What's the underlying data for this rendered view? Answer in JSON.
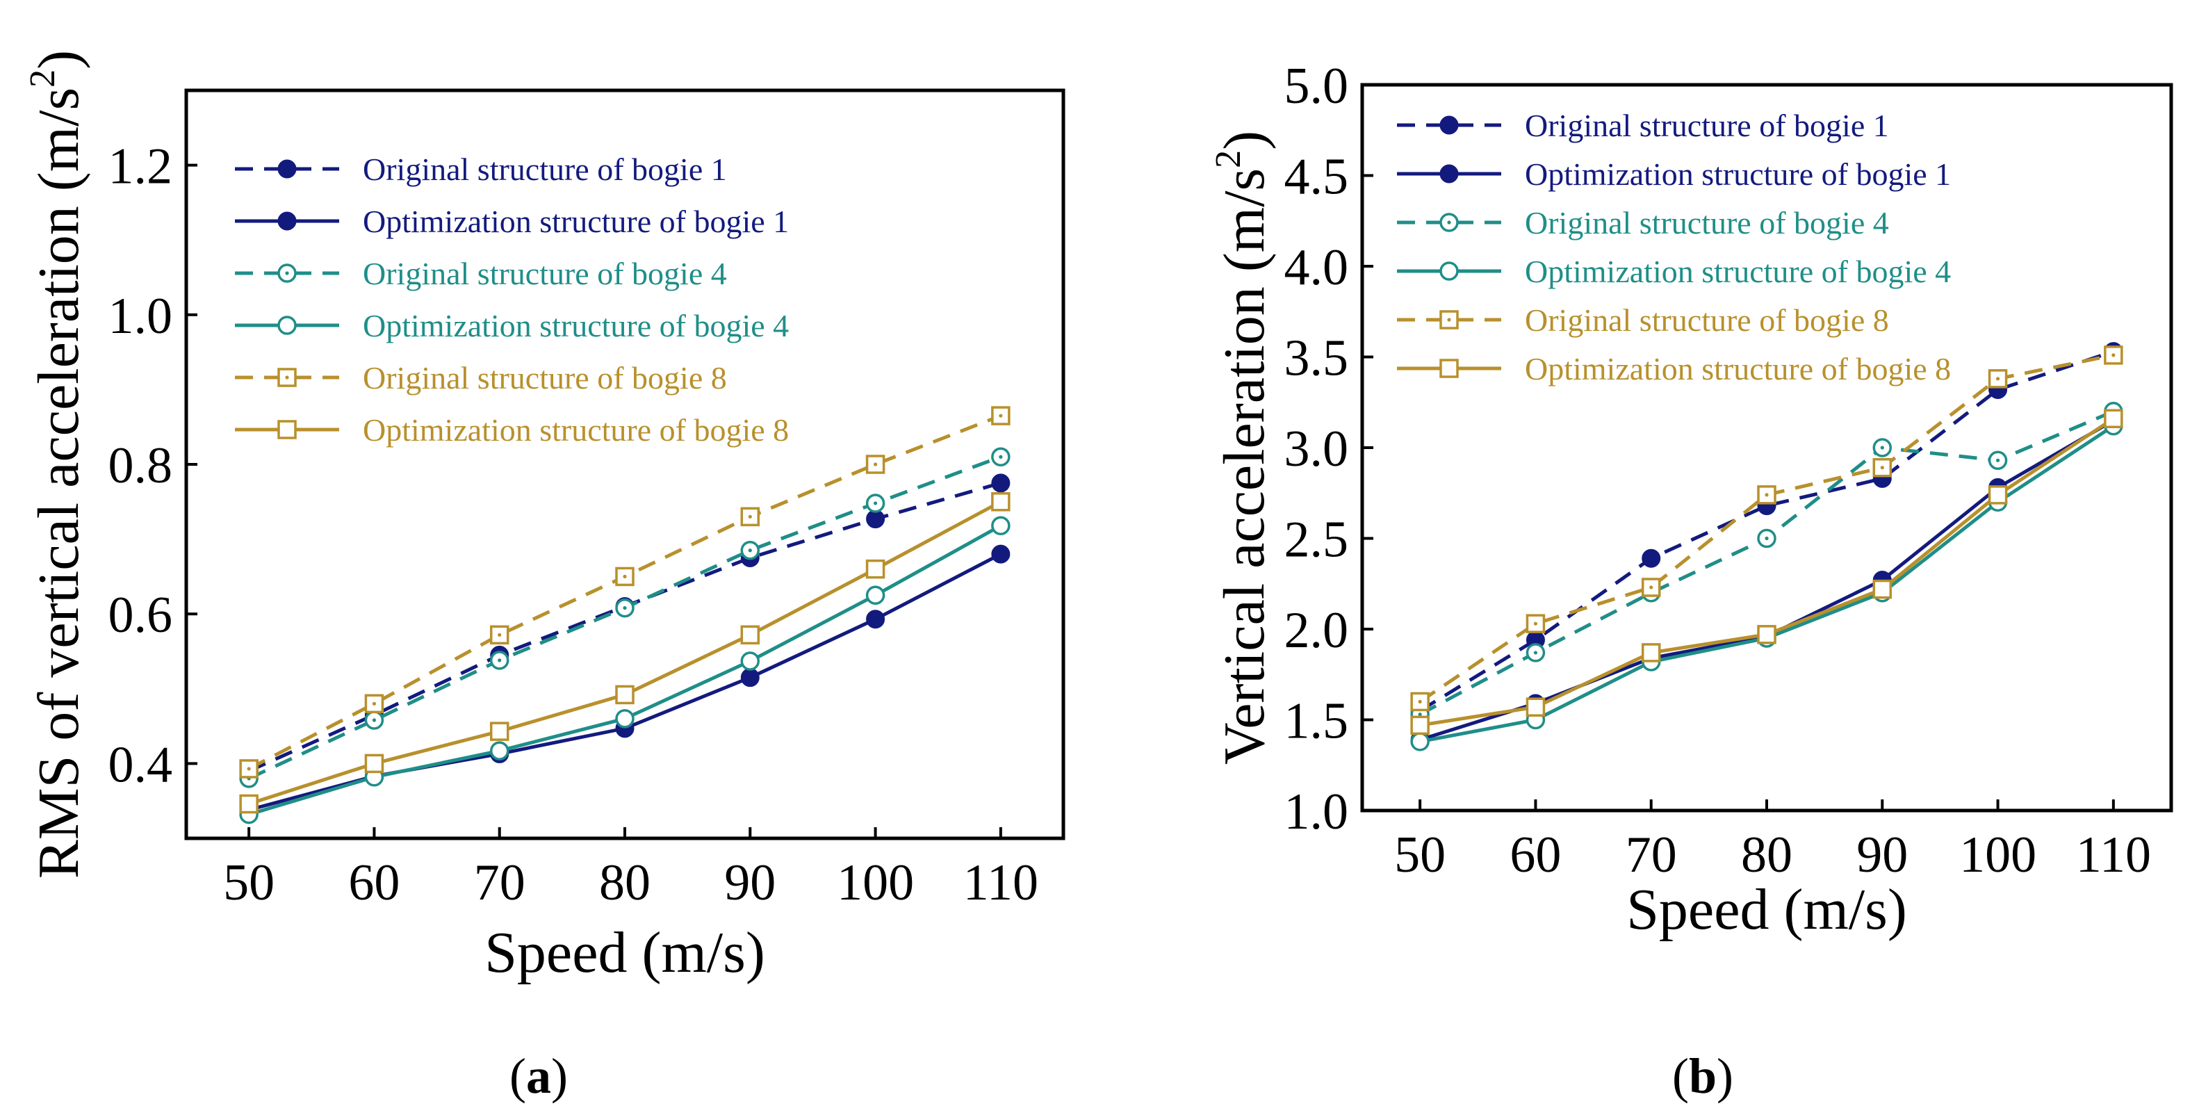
{
  "colors": {
    "bogie1": "#131a7e",
    "bogie4": "#1f8e88",
    "bogie8": "#b8902c",
    "axis": "#000000"
  },
  "chart_data": [
    {
      "id": "a",
      "type": "line",
      "caption": "a",
      "xlabel": "Speed (m/s)",
      "ylabel": "RMS of vertical acceleration (m/s",
      "ylabel_sup": "2",
      "ylabel_end": ")",
      "xlim": [
        45,
        115
      ],
      "ylim": [
        0.3,
        1.3
      ],
      "xticks": [
        50,
        60,
        70,
        80,
        90,
        100,
        110
      ],
      "yticks": [
        0.4,
        0.6,
        0.8,
        1.0,
        1.2
      ],
      "ytick_labels": [
        "0.4",
        "0.6",
        "0.8",
        "1.0",
        "1.2"
      ],
      "x": [
        50,
        60,
        70,
        80,
        90,
        100,
        110
      ],
      "series": [
        {
          "name": "Original structure of bogie 1",
          "color_key": "bogie1",
          "dash": true,
          "marker": "filled-circle",
          "values": [
            0.39,
            0.465,
            0.545,
            0.61,
            0.675,
            0.727,
            0.775
          ]
        },
        {
          "name": "Optimization structure of bogie 1",
          "color_key": "bogie1",
          "dash": false,
          "marker": "filled-circle",
          "values": [
            0.338,
            0.383,
            0.413,
            0.447,
            0.515,
            0.593,
            0.68
          ]
        },
        {
          "name": "Original structure of bogie 4",
          "color_key": "bogie4",
          "dash": true,
          "marker": "dot-circle",
          "values": [
            0.38,
            0.458,
            0.538,
            0.608,
            0.685,
            0.748,
            0.81
          ]
        },
        {
          "name": "Optimization  structure of bogie 4",
          "color_key": "bogie4",
          "dash": false,
          "marker": "open-circle",
          "values": [
            0.332,
            0.382,
            0.417,
            0.46,
            0.537,
            0.625,
            0.718
          ]
        },
        {
          "name": "Original structure of bogie 8",
          "color_key": "bogie8",
          "dash": true,
          "marker": "dot-square",
          "values": [
            0.393,
            0.48,
            0.572,
            0.65,
            0.73,
            0.8,
            0.865
          ]
        },
        {
          "name": "Optimization  structure of bogie 8",
          "color_key": "bogie8",
          "dash": false,
          "marker": "open-square",
          "values": [
            0.346,
            0.4,
            0.443,
            0.492,
            0.572,
            0.66,
            0.75
          ]
        }
      ],
      "legend_position": "top-left"
    },
    {
      "id": "b",
      "type": "line",
      "caption": "b",
      "xlabel": "Speed (m/s)",
      "ylabel": "Vertical acceleration  (m/s",
      "ylabel_sup": "2",
      "ylabel_end": ")",
      "xlim": [
        45,
        115
      ],
      "ylim": [
        1.0,
        5.0
      ],
      "xticks": [
        50,
        60,
        70,
        80,
        90,
        100,
        110
      ],
      "yticks": [
        1.0,
        1.5,
        2.0,
        2.5,
        3.0,
        3.5,
        4.0,
        4.5,
        5.0
      ],
      "ytick_labels": [
        "1.0",
        "1.5",
        "2.0",
        "2.5",
        "3.0",
        "3.5",
        "4.0",
        "4.5",
        "5.0"
      ],
      "x": [
        50,
        60,
        70,
        80,
        90,
        100,
        110
      ],
      "series": [
        {
          "name": "Original structure of bogie 1",
          "color_key": "bogie1",
          "dash": true,
          "marker": "filled-circle",
          "values": [
            1.55,
            1.94,
            2.39,
            2.68,
            2.83,
            3.32,
            3.53
          ]
        },
        {
          "name": "Optimization structure of bogie 1",
          "color_key": "bogie1",
          "dash": false,
          "marker": "filled-circle",
          "values": [
            1.39,
            1.59,
            1.84,
            1.96,
            2.27,
            2.78,
            3.15
          ]
        },
        {
          "name": "Original structure of bogie 4",
          "color_key": "bogie4",
          "dash": true,
          "marker": "dot-circle",
          "values": [
            1.53,
            1.87,
            2.2,
            2.5,
            3.0,
            2.93,
            3.2
          ]
        },
        {
          "name": "Optimization structure of bogie 4",
          "color_key": "bogie4",
          "dash": false,
          "marker": "open-circle",
          "values": [
            1.38,
            1.5,
            1.82,
            1.95,
            2.2,
            2.7,
            3.12
          ]
        },
        {
          "name": "Original structure of bogie 8",
          "color_key": "bogie8",
          "dash": true,
          "marker": "dot-square",
          "values": [
            1.6,
            2.03,
            2.23,
            2.74,
            2.89,
            3.38,
            3.51
          ]
        },
        {
          "name": "Optimization structure of bogie 8",
          "color_key": "bogie8",
          "dash": false,
          "marker": "open-square",
          "values": [
            1.47,
            1.57,
            1.87,
            1.97,
            2.22,
            2.74,
            3.16
          ]
        }
      ],
      "legend_position": "top-left"
    }
  ]
}
